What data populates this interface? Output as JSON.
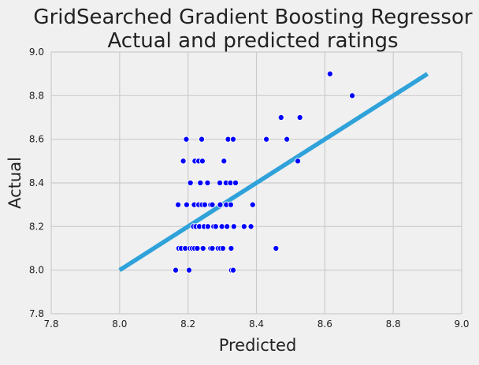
{
  "chart_data": {
    "type": "scatter",
    "title": "GridSearched Gradient Boosting Regressor",
    "subtitle": "Actual and predicted ratings",
    "xlabel": "Predicted",
    "ylabel": "Actual",
    "xlim": [
      7.8,
      9.0
    ],
    "ylim": [
      7.8,
      9.0
    ],
    "x_ticks": [
      "7.8",
      "8.0",
      "8.2",
      "8.4",
      "8.6",
      "8.8",
      "9.0"
    ],
    "y_ticks": [
      "7.8",
      "8.0",
      "8.2",
      "8.4",
      "8.6",
      "8.8",
      "9.0"
    ],
    "grid": true,
    "colors": {
      "background": "#f0f0f0",
      "grid": "#cbcbcb",
      "points": "#0000ff",
      "point_edge": "#ffffff",
      "line": "#30a2da"
    },
    "line": {
      "x": [
        8.0,
        8.9
      ],
      "y": [
        8.0,
        8.9
      ]
    },
    "points": [
      [
        8.615,
        8.9
      ],
      [
        8.68,
        8.8
      ],
      [
        8.472,
        8.7
      ],
      [
        8.527,
        8.7
      ],
      [
        8.195,
        8.6
      ],
      [
        8.24,
        8.6
      ],
      [
        8.317,
        8.6
      ],
      [
        8.332,
        8.6
      ],
      [
        8.429,
        8.6
      ],
      [
        8.489,
        8.6
      ],
      [
        8.186,
        8.5
      ],
      [
        8.22,
        8.5
      ],
      [
        8.231,
        8.5
      ],
      [
        8.242,
        8.5
      ],
      [
        8.305,
        8.5
      ],
      [
        8.521,
        8.5
      ],
      [
        8.207,
        8.4
      ],
      [
        8.236,
        8.4
      ],
      [
        8.257,
        8.4
      ],
      [
        8.293,
        8.4
      ],
      [
        8.311,
        8.4
      ],
      [
        8.324,
        8.4
      ],
      [
        8.339,
        8.4
      ],
      [
        8.171,
        8.3
      ],
      [
        8.196,
        8.3
      ],
      [
        8.218,
        8.3
      ],
      [
        8.231,
        8.3
      ],
      [
        8.241,
        8.3
      ],
      [
        8.249,
        8.3
      ],
      [
        8.266,
        8.3
      ],
      [
        8.271,
        8.3
      ],
      [
        8.294,
        8.3
      ],
      [
        8.312,
        8.3
      ],
      [
        8.325,
        8.3
      ],
      [
        8.389,
        8.3
      ],
      [
        8.216,
        8.2
      ],
      [
        8.223,
        8.2
      ],
      [
        8.233,
        8.2
      ],
      [
        8.247,
        8.2
      ],
      [
        8.258,
        8.2
      ],
      [
        8.275,
        8.2
      ],
      [
        8.281,
        8.2
      ],
      [
        8.299,
        8.2
      ],
      [
        8.314,
        8.2
      ],
      [
        8.334,
        8.2
      ],
      [
        8.364,
        8.2
      ],
      [
        8.384,
        8.2
      ],
      [
        8.173,
        8.1
      ],
      [
        8.18,
        8.1
      ],
      [
        8.192,
        8.1
      ],
      [
        8.206,
        8.1
      ],
      [
        8.212,
        8.1
      ],
      [
        8.219,
        8.1
      ],
      [
        8.227,
        8.1
      ],
      [
        8.244,
        8.1
      ],
      [
        8.266,
        8.1
      ],
      [
        8.271,
        8.1
      ],
      [
        8.288,
        8.1
      ],
      [
        8.295,
        8.1
      ],
      [
        8.302,
        8.1
      ],
      [
        8.326,
        8.1
      ],
      [
        8.457,
        8.1
      ],
      [
        8.164,
        8.0
      ],
      [
        8.203,
        8.0
      ],
      [
        8.327,
        8.0
      ],
      [
        8.332,
        8.0
      ]
    ]
  }
}
